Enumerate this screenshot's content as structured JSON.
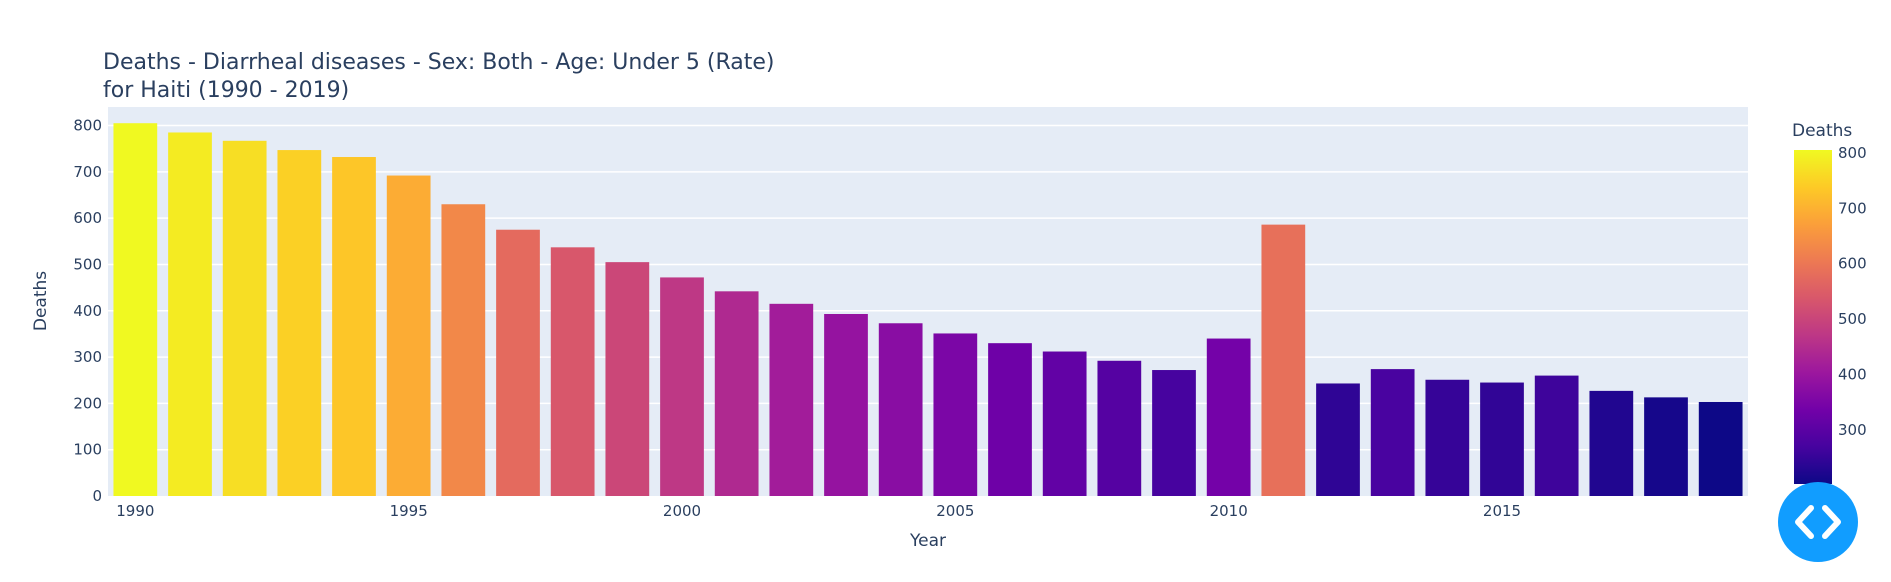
{
  "chart_data": {
    "type": "bar",
    "title": "Deaths - Diarrheal diseases - Sex: Both - Age: Under 5 (Rate)",
    "subtitle": "for Haiti (1990 - 2019)",
    "xlabel": "Year",
    "ylabel": "Deaths",
    "x": [
      1990,
      1991,
      1992,
      1993,
      1994,
      1995,
      1996,
      1997,
      1998,
      1999,
      2000,
      2001,
      2002,
      2003,
      2004,
      2005,
      2006,
      2007,
      2008,
      2009,
      2010,
      2011,
      2012,
      2013,
      2014,
      2015,
      2016,
      2017,
      2018,
      2019
    ],
    "values": [
      805,
      785,
      767,
      747,
      732,
      692,
      630,
      575,
      537,
      505,
      472,
      442,
      415,
      393,
      373,
      351,
      330,
      312,
      292,
      272,
      340,
      586,
      243,
      274,
      251,
      245,
      260,
      227,
      213,
      203
    ],
    "ylim": [
      0,
      840
    ],
    "x_ticks": [
      "1990",
      "1995",
      "2000",
      "2005",
      "2010",
      "2015"
    ],
    "y_ticks": [
      "0",
      "100",
      "200",
      "300",
      "400",
      "500",
      "600",
      "700",
      "800"
    ],
    "grid": true,
    "colorbar": {
      "title": "Deaths",
      "range": [
        203,
        805
      ],
      "ticks": [
        "300",
        "400",
        "500",
        "600",
        "700",
        "800"
      ],
      "colorscale": "plasma"
    },
    "colors": {
      "plot_background": "#e5ecf6",
      "gridline": "#ffffff",
      "text": "#2a3f5f"
    }
  },
  "controls": {
    "code_button_icon": "code-brackets-icon",
    "code_button_color": "#119dff"
  }
}
